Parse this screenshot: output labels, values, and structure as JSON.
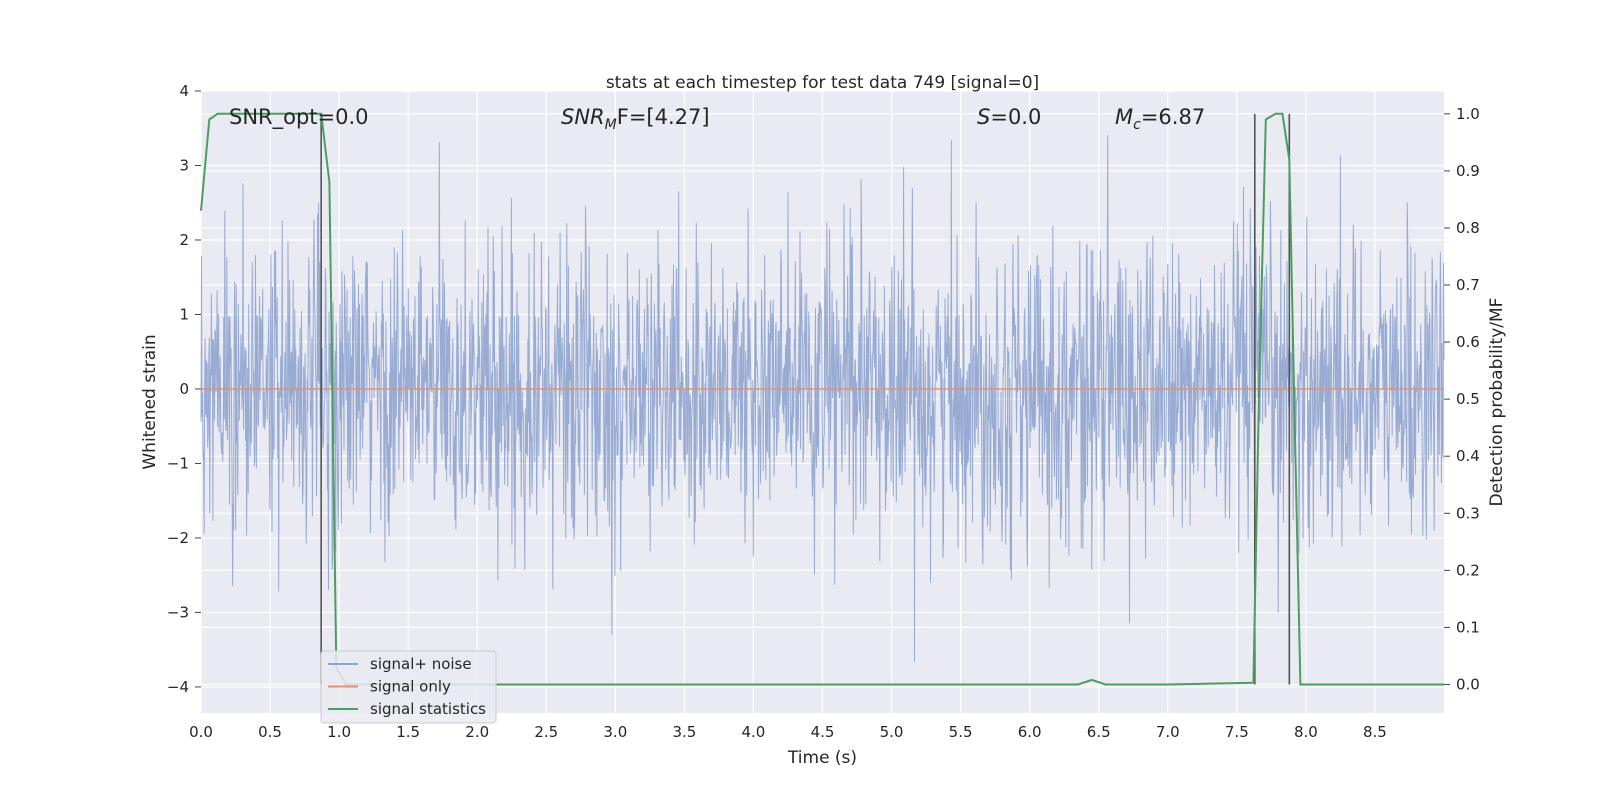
{
  "chart_data": {
    "type": "line",
    "title": "stats at each timestep for test data 749 [signal=0]",
    "xlabel": "Time (s)",
    "ylabel": "Whitened strain",
    "y2label": "Detection probability/MF",
    "xlim": [
      0.0,
      9.0
    ],
    "ylim": [
      -4.35,
      4.0
    ],
    "y2lim": [
      -0.05,
      1.04
    ],
    "xticks": [
      "0.0",
      "0.5",
      "1.0",
      "1.5",
      "2.0",
      "2.5",
      "3.0",
      "3.5",
      "4.0",
      "4.5",
      "5.0",
      "5.5",
      "6.0",
      "6.5",
      "7.0",
      "7.5",
      "8.0",
      "8.5"
    ],
    "yticks": [
      "−4",
      "−3",
      "−2",
      "−1",
      "0",
      "1",
      "2",
      "3",
      "4"
    ],
    "y2ticks": [
      "0.0",
      "0.1",
      "0.2",
      "0.3",
      "0.4",
      "0.5",
      "0.6",
      "0.7",
      "0.8",
      "0.9",
      "1.0"
    ],
    "grid": true,
    "legend_position": "lower-left",
    "annotations": {
      "snr_opt": "SNR_opt=0.0",
      "snr_mf_main": "SNR",
      "snr_mf_sub": "M",
      "snr_mf_rest": "F=[4.27]",
      "s_main": "S",
      "s_rest": "=0.0",
      "mc_main": "M",
      "mc_sub": "c",
      "mc_rest": "=6.87"
    },
    "series": [
      {
        "name": "signal+ noise",
        "color": "#8fa4cf",
        "axis": "left",
        "description_values": "dense whitened noise, roughly within ±1.5 with spikes to about ±3.6",
        "noise_std": 1.0
      },
      {
        "name": "signal only",
        "color": "#e5926b",
        "axis": "left",
        "x": [
          0.0,
          9.0
        ],
        "y": [
          0.0,
          0.0
        ]
      },
      {
        "name": "signal statistics",
        "color": "#4c9e5f",
        "axis": "right",
        "x": [
          0.0,
          0.06,
          0.12,
          0.2,
          0.5,
          0.8,
          0.87,
          0.93,
          0.98,
          1.05,
          1.5,
          2.0,
          3.0,
          4.0,
          5.0,
          6.0,
          6.35,
          6.45,
          6.55,
          7.0,
          7.62,
          7.66,
          7.71,
          7.78,
          7.83,
          7.88,
          7.92,
          7.96,
          8.2,
          9.0
        ],
        "y": [
          0.83,
          0.99,
          1.0,
          1.0,
          1.0,
          1.0,
          1.0,
          0.88,
          0.03,
          0.0,
          0.0,
          0.0,
          0.0,
          0.0,
          0.0,
          0.0,
          0.0,
          0.008,
          0.0,
          0.0,
          0.003,
          0.5,
          0.99,
          1.0,
          1.0,
          0.92,
          0.45,
          0.0,
          0.0,
          0.0
        ]
      }
    ],
    "vertical_markers": [
      0.87,
      7.63,
      7.88
    ],
    "vertical_marker_color": "#555555",
    "background_color": "#eaeaf2",
    "grid_color": "#ffffff"
  }
}
